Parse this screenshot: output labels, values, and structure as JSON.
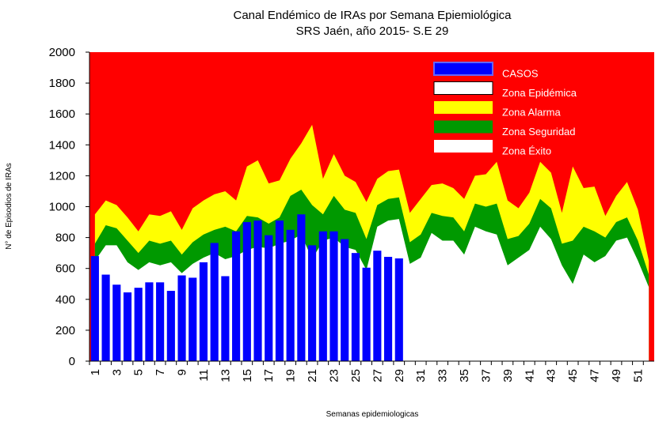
{
  "chart_data": {
    "type": "area",
    "title": "Canal Endémico de IRAs por Semana Epiemiológica",
    "subtitle": "SRS Jaén, año 2015- S.E  29",
    "x_label": "Semanas epidemiologicas",
    "y_label": "N° de Episodios de IRAs",
    "plot_background": "#ff0000",
    "categories": [
      1,
      null,
      3,
      null,
      5,
      null,
      7,
      null,
      9,
      null,
      11,
      null,
      13,
      null,
      15,
      null,
      17,
      null,
      19,
      null,
      21,
      null,
      23,
      null,
      25,
      null,
      27,
      null,
      29,
      null,
      31,
      null,
      33,
      null,
      35,
      null,
      37,
      null,
      39,
      null,
      41,
      null,
      43,
      null,
      45,
      null,
      47,
      null,
      49,
      null,
      51,
      null
    ],
    "ylim": [
      0,
      2000
    ],
    "yticks": [
      0,
      200,
      400,
      600,
      800,
      1000,
      1200,
      1400,
      1600,
      1800,
      2000
    ],
    "series": [
      {
        "name": "CASOS",
        "color": "#0000ff",
        "values": [
          680,
          560,
          495,
          445,
          475,
          510,
          510,
          455,
          555,
          540,
          640,
          765,
          550,
          840,
          900,
          910,
          815,
          910,
          850,
          950,
          750,
          840,
          840,
          790,
          700,
          605,
          715,
          675,
          665,
          null,
          null,
          null,
          null,
          null,
          null,
          null,
          null,
          null,
          null,
          null,
          null,
          null,
          null,
          null,
          null,
          null,
          null,
          null,
          null,
          null,
          null,
          null
        ]
      },
      {
        "name": "Zona Epidémica",
        "color": "#ffffff"
      },
      {
        "name": "Zona Alarma",
        "color": "#ffff00",
        "values": [
          950,
          1040,
          1010,
          930,
          840,
          950,
          940,
          970,
          850,
          990,
          1040,
          1080,
          1100,
          1040,
          1260,
          1300,
          1150,
          1170,
          1310,
          1410,
          1530,
          1180,
          1340,
          1200,
          1160,
          1030,
          1180,
          1230,
          1240,
          960,
          1050,
          1140,
          1150,
          1120,
          1050,
          1200,
          1210,
          1290,
          1040,
          990,
          1090,
          1290,
          1220,
          960,
          1260,
          1120,
          1130,
          940,
          1070,
          1160,
          980,
          650
        ]
      },
      {
        "name": "Zona Seguridad",
        "color": "#009900",
        "values": [
          760,
          880,
          860,
          780,
          700,
          780,
          760,
          780,
          690,
          770,
          820,
          850,
          870,
          840,
          940,
          930,
          890,
          930,
          1070,
          1110,
          1010,
          950,
          1070,
          980,
          960,
          790,
          1010,
          1050,
          1060,
          770,
          820,
          960,
          940,
          930,
          840,
          1020,
          1000,
          1020,
          790,
          810,
          890,
          1050,
          990,
          760,
          780,
          870,
          840,
          800,
          900,
          930,
          780,
          560
        ]
      },
      {
        "name": "Zona Éxito",
        "color": "#ffffff",
        "values": [
          650,
          750,
          750,
          640,
          590,
          640,
          620,
          640,
          570,
          630,
          670,
          700,
          660,
          680,
          720,
          740,
          730,
          760,
          780,
          820,
          660,
          780,
          800,
          740,
          720,
          590,
          870,
          910,
          920,
          630,
          670,
          830,
          780,
          780,
          690,
          870,
          840,
          820,
          620,
          670,
          720,
          870,
          790,
          620,
          500,
          690,
          640,
          680,
          780,
          800,
          650,
          480
        ]
      }
    ]
  }
}
